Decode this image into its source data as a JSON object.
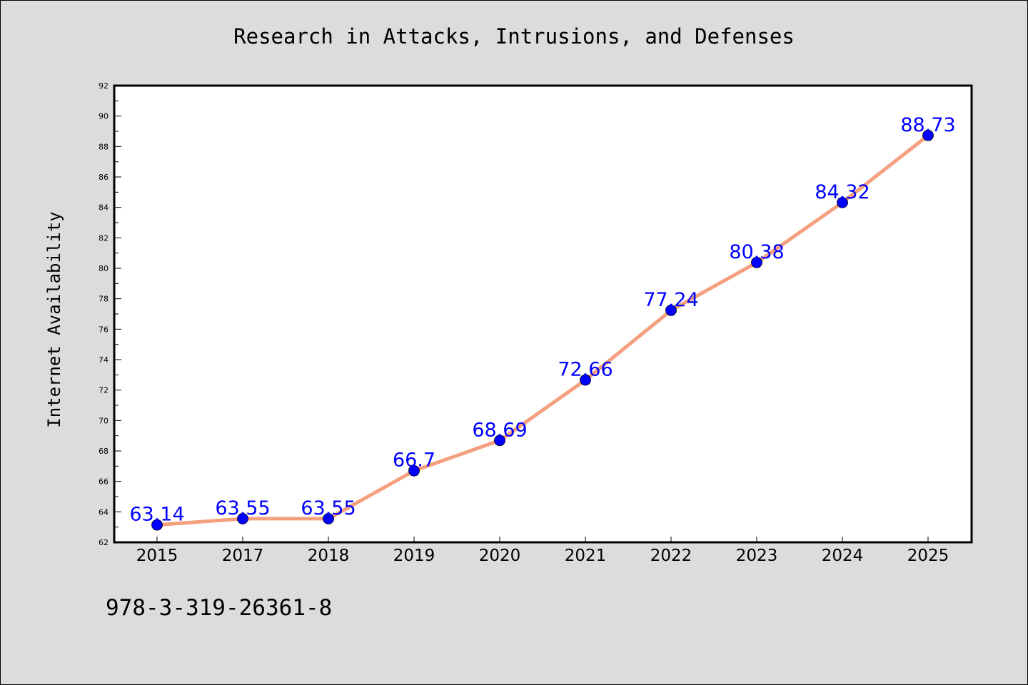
{
  "chart_data": {
    "type": "line",
    "title": "Research in Attacks, Intrusions, and Defenses",
    "ylabel": "Internet Availability",
    "xlabel": "",
    "categories": [
      "2015",
      "2017",
      "2018",
      "2019",
      "2020",
      "2021",
      "2022",
      "2023",
      "2024",
      "2025"
    ],
    "series": [
      {
        "values": [
          63.14,
          63.55,
          63.55,
          66.7,
          68.69,
          72.66,
          77.24,
          80.38,
          84.32,
          88.73
        ],
        "labels": [
          "63.14",
          "63.55",
          "63.55",
          "66.7",
          "68.69",
          "72.66",
          "77.24",
          "80.38",
          "84.32",
          "88.73"
        ],
        "line_color": "#f4a07f",
        "marker_color": "#0000ff"
      }
    ],
    "ylim": [
      62,
      92
    ],
    "yticks": [
      "62",
      "64",
      "66",
      "68",
      "70",
      "72",
      "74",
      "76",
      "78",
      "80",
      "82",
      "84",
      "86",
      "88",
      "90",
      "92"
    ],
    "grid": false,
    "legend": false
  },
  "footer": {
    "isbn": "978-3-319-26361-8"
  },
  "colors": {
    "background": "#dcdcdc",
    "plot_background": "#ffffff",
    "label_color": "#0000ff"
  }
}
